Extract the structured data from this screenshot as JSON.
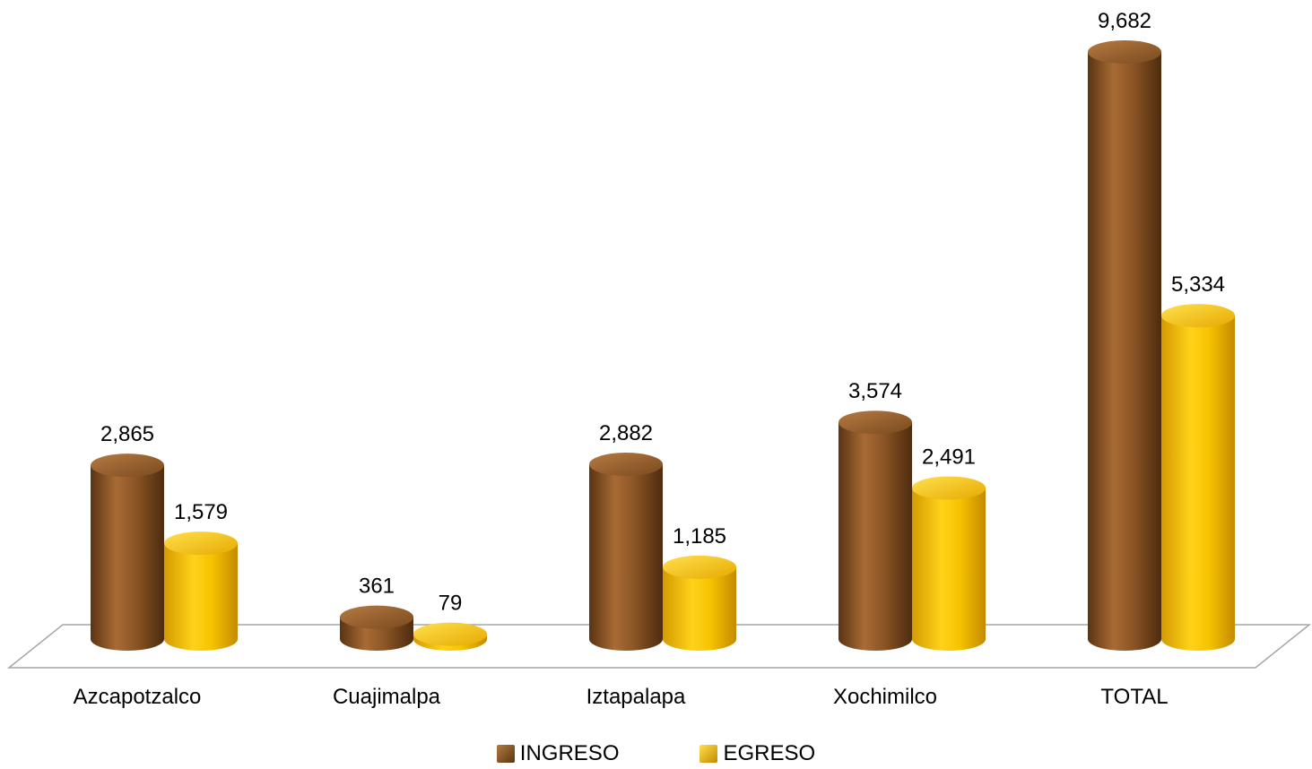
{
  "chart_data": {
    "type": "bar",
    "categories": [
      "Azcapotzalco",
      "Cuajimalpa",
      "Iztapalapa",
      "Xochimilco",
      "TOTAL"
    ],
    "series": [
      {
        "name": "INGRESO",
        "values": [
          2865,
          361,
          2882,
          3574,
          9682
        ],
        "labels": [
          "2,865",
          "361",
          "2,882",
          "3,574",
          "9,682"
        ],
        "color": "#8B5A2B"
      },
      {
        "name": "EGRESO",
        "values": [
          1579,
          79,
          1185,
          2491,
          5334
        ],
        "labels": [
          "1,579",
          "79",
          "1,185",
          "2,491",
          "5,334"
        ],
        "color": "#F5C000"
      }
    ],
    "ylim": [
      0,
      9682
    ],
    "grid": false,
    "legend_position": "bottom",
    "style": "3d-cylinder"
  }
}
